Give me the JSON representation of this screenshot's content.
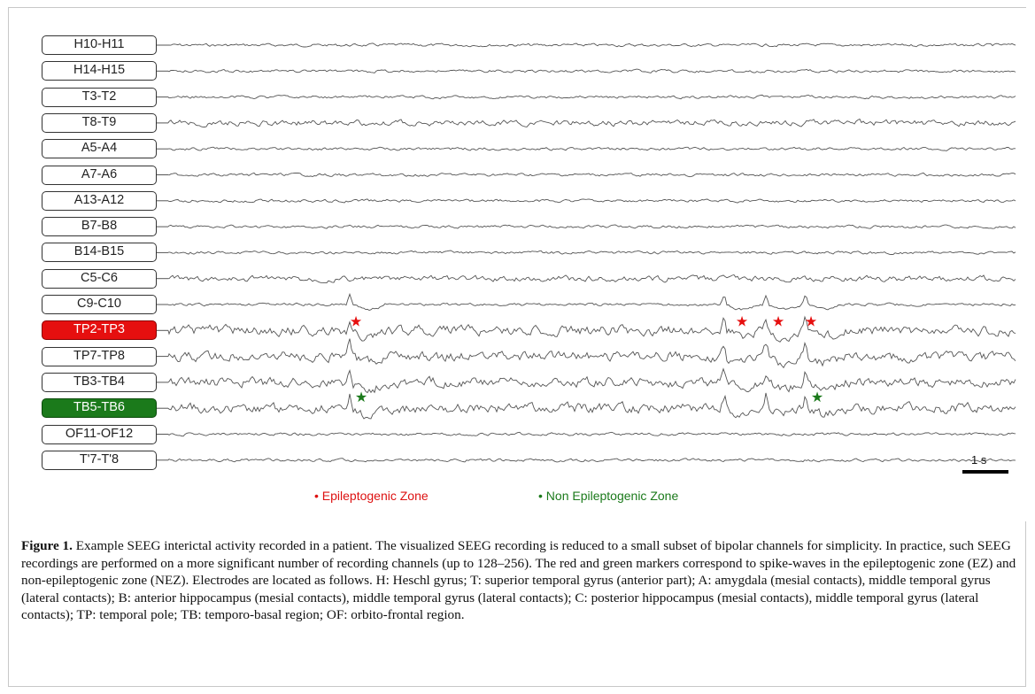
{
  "figure": {
    "channels": [
      {
        "label": "H10-H11",
        "style": "normal"
      },
      {
        "label": "H14-H15",
        "style": "normal"
      },
      {
        "label": "T3-T2",
        "style": "normal"
      },
      {
        "label": "T8-T9",
        "style": "normal"
      },
      {
        "label": "A5-A4",
        "style": "normal"
      },
      {
        "label": "A7-A6",
        "style": "normal"
      },
      {
        "label": "A13-A12",
        "style": "normal"
      },
      {
        "label": "B7-B8",
        "style": "normal"
      },
      {
        "label": "B14-B15",
        "style": "normal"
      },
      {
        "label": "C5-C6",
        "style": "normal"
      },
      {
        "label": "C9-C10",
        "style": "normal"
      },
      {
        "label": "TP2-TP3",
        "style": "ez"
      },
      {
        "label": "TP7-TP8",
        "style": "normal"
      },
      {
        "label": "TB3-TB4",
        "style": "normal"
      },
      {
        "label": "TB5-TB6",
        "style": "nez"
      },
      {
        "label": "OF11-OF12",
        "style": "normal"
      },
      {
        "label": "T'7-T'8",
        "style": "normal"
      }
    ],
    "legend": {
      "ez_label": "• Epileptogenic Zone",
      "nez_label": "• Non Epileptogenic Zone"
    },
    "scale_bar_label": "1 s",
    "colors": {
      "ez": "#e60f0f",
      "nez": "#1b7a1b",
      "trace": "#555555"
    }
  },
  "caption": {
    "label": "Figure 1.",
    "text": " Example SEEG interictal activity recorded in a patient. The visualized SEEG recording is reduced to a small subset of bipolar channels for simplicity. In practice, such SEEG recordings are performed on a more significant number of recording channels (up to 128–256). The red and green markers correspond to spike-waves in the epileptogenic zone (EZ) and non-epileptogenic zone (NEZ). Electrodes are located as follows. H: Heschl gyrus; T: superior temporal gyrus (anterior part); A: amygdala (mesial contacts), middle temporal gyrus (lateral contacts); B: anterior hippocampus (mesial contacts), middle temporal gyrus (lateral contacts); C: posterior hippocampus (mesial contacts), middle temporal gyrus (lateral contacts); TP: temporal pole; TB: temporo-basal region; OF: orbito-frontal region."
  }
}
